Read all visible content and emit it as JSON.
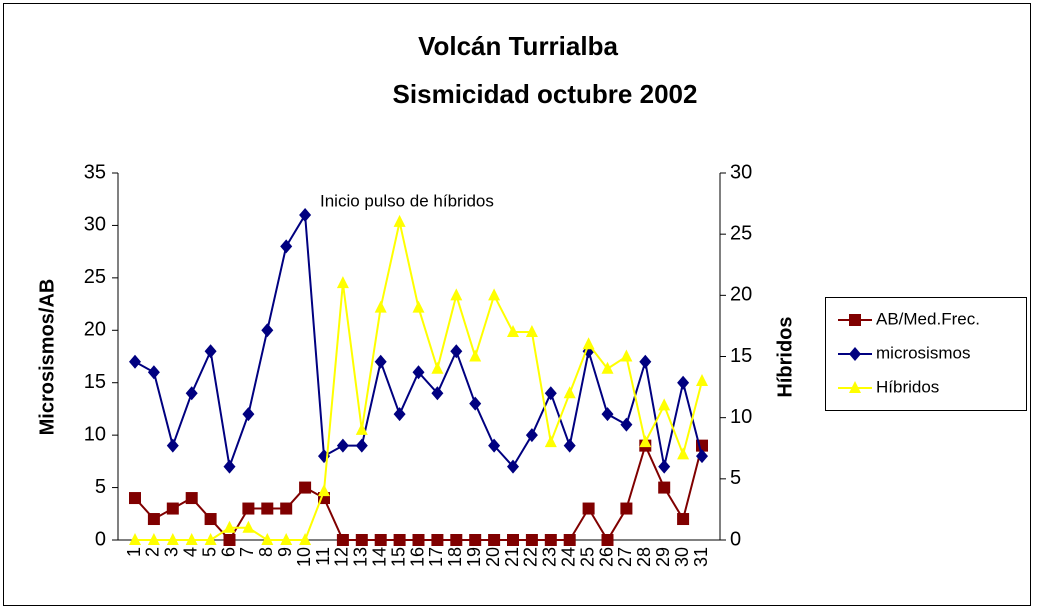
{
  "chart_data": {
    "type": "line",
    "title": "Volcán Turrialba",
    "subtitle": "Sismicidad octubre 2002",
    "y_label": "Microsismos/AB",
    "y2_label": "Híbridos",
    "annotation": "Inicio pulso de híbridos",
    "categories": [
      "1",
      "2",
      "3",
      "4",
      "5",
      "6",
      "7",
      "8",
      "9",
      "10",
      "11",
      "12",
      "13",
      "14",
      "15",
      "16",
      "17",
      "18",
      "19",
      "20",
      "21",
      "22",
      "23",
      "24",
      "25",
      "26",
      "27",
      "28",
      "29",
      "30",
      "31"
    ],
    "series": [
      {
        "name": "AB/Med.Frec.",
        "color": "#800000",
        "marker": "square",
        "axis": "y",
        "values": [
          4,
          2,
          3,
          4,
          2,
          0,
          3,
          3,
          3,
          5,
          4,
          0,
          0,
          0,
          0,
          0,
          0,
          0,
          0,
          0,
          0,
          0,
          0,
          0,
          3,
          0,
          3,
          9,
          5,
          2,
          9
        ]
      },
      {
        "name": "microsismos",
        "color": "#000080",
        "marker": "diamond",
        "axis": "y",
        "values": [
          17,
          16,
          9,
          14,
          18,
          7,
          12,
          20,
          28,
          31,
          8,
          9,
          9,
          17,
          12,
          16,
          14,
          18,
          13,
          9,
          7,
          10,
          14,
          9,
          18,
          12,
          11,
          17,
          7,
          15,
          8
        ]
      },
      {
        "name": "Híbridos",
        "color": "#ffff00",
        "marker": "triangle",
        "axis": "y2",
        "values": [
          0,
          0,
          0,
          0,
          0,
          1,
          1,
          0,
          0,
          0,
          4,
          21,
          9,
          19,
          26,
          19,
          14,
          20,
          15,
          20,
          17,
          17,
          8,
          12,
          16,
          14,
          15,
          8,
          11,
          7,
          13
        ]
      }
    ],
    "ylim": [
      0,
      35
    ],
    "yticks": [
      0,
      5,
      10,
      15,
      20,
      25,
      30,
      35
    ],
    "y2lim": [
      0,
      30
    ],
    "y2ticks": [
      0,
      5,
      10,
      15,
      20,
      25,
      30
    ],
    "legend": "right"
  }
}
